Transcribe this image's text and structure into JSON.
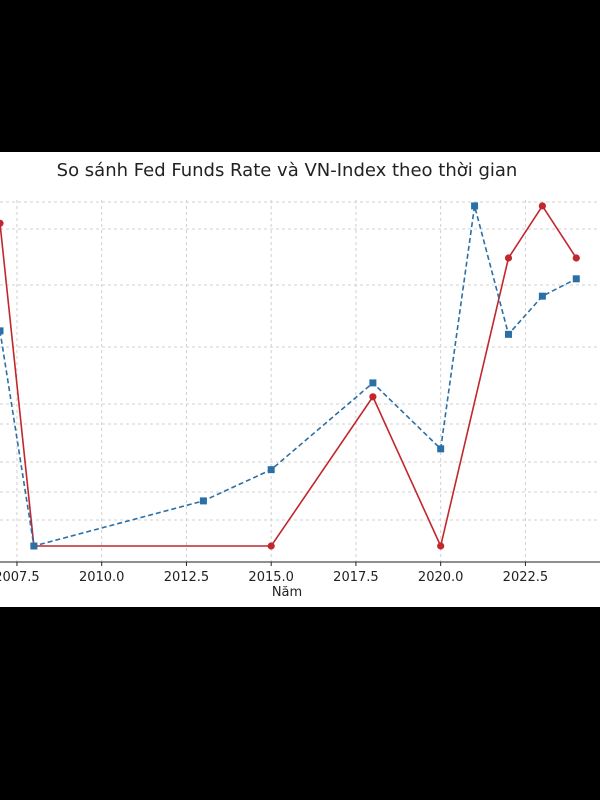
{
  "chart_data": {
    "type": "line",
    "title": "So sánh Fed Funds Rate và VN-Index theo thời gian",
    "xlabel": "Năm",
    "ylabel": "",
    "xlim": [
      2007.0,
      2024.7
    ],
    "x_ticks": [
      "2007.5",
      "2010.0",
      "2012.5",
      "2015.0",
      "2017.5",
      "2020.0",
      "2022.5"
    ],
    "grid": true,
    "series": [
      {
        "color": "#c1272d",
        "style": "solid",
        "marker": "circle",
        "points": [
          [
            2007,
            0.93
          ],
          [
            2008,
            0.0
          ],
          [
            2015,
            0.0
          ],
          [
            2018,
            0.43
          ],
          [
            2020,
            0.0
          ],
          [
            2022,
            0.83
          ],
          [
            2023,
            0.98
          ],
          [
            2024,
            0.83
          ]
        ]
      },
      {
        "color": "#2a6fa6",
        "style": "dashed",
        "marker": "square",
        "points": [
          [
            2007,
            0.62
          ],
          [
            2008,
            0.0
          ],
          [
            2013,
            0.13
          ],
          [
            2015,
            0.22
          ],
          [
            2018,
            0.47
          ],
          [
            2020,
            0.28
          ],
          [
            2021,
            0.98
          ],
          [
            2022,
            0.61
          ],
          [
            2023,
            0.72
          ],
          [
            2024,
            0.77
          ]
        ]
      }
    ]
  }
}
